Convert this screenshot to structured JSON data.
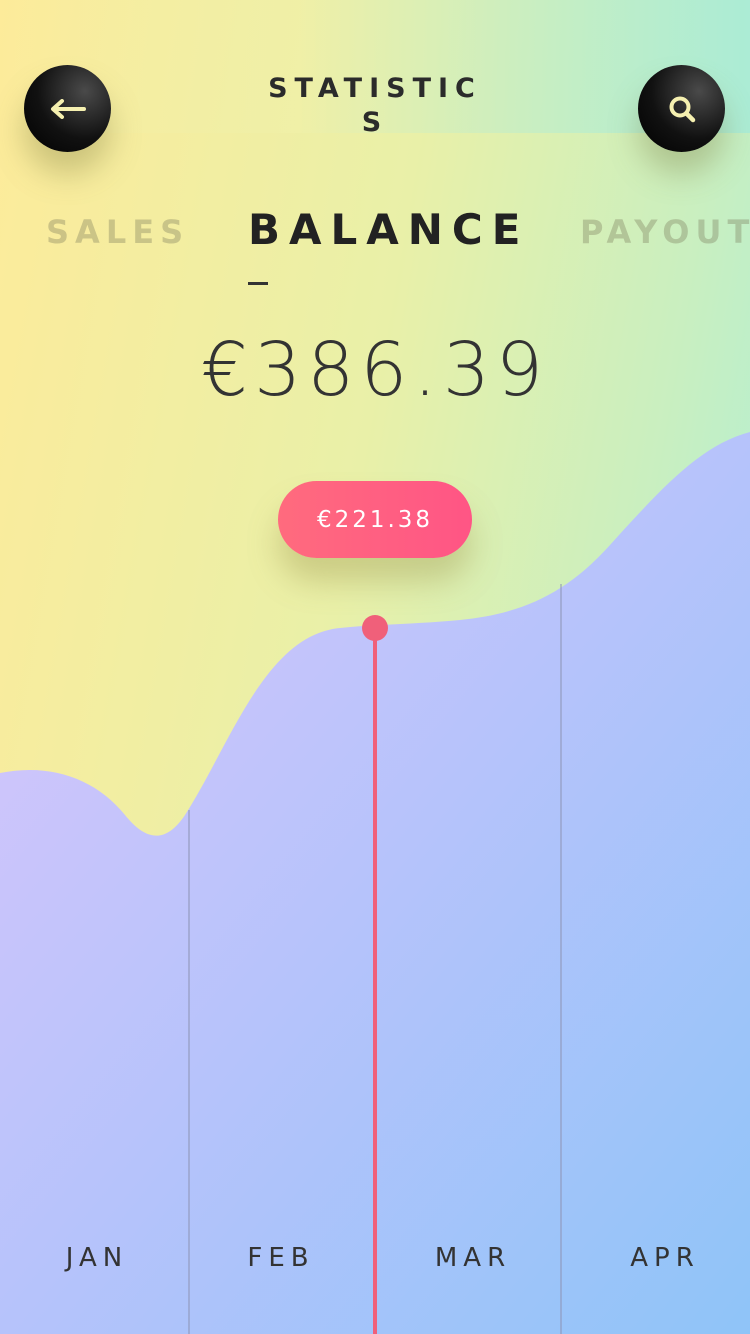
{
  "header": {
    "title": "STATISTICS",
    "back_icon": "arrow-left-icon",
    "search_icon": "search-icon"
  },
  "tabs": [
    {
      "label": "SALES",
      "active": false
    },
    {
      "label": "BALANCE",
      "active": true
    },
    {
      "label": "PAYOUT",
      "active": false
    }
  ],
  "balance": {
    "amount": "€386.39"
  },
  "tooltip": {
    "value": "€221.38"
  },
  "colors": {
    "accent": "#ff5a80",
    "dark": "#111111",
    "area_start": "#d9c6fb",
    "area_end": "#92c3fa"
  },
  "chart_data": {
    "type": "area",
    "categories": [
      "JAN",
      "FEB",
      "MAR",
      "APR"
    ],
    "selected_category": "MAR",
    "selected_value": 221.38
  }
}
